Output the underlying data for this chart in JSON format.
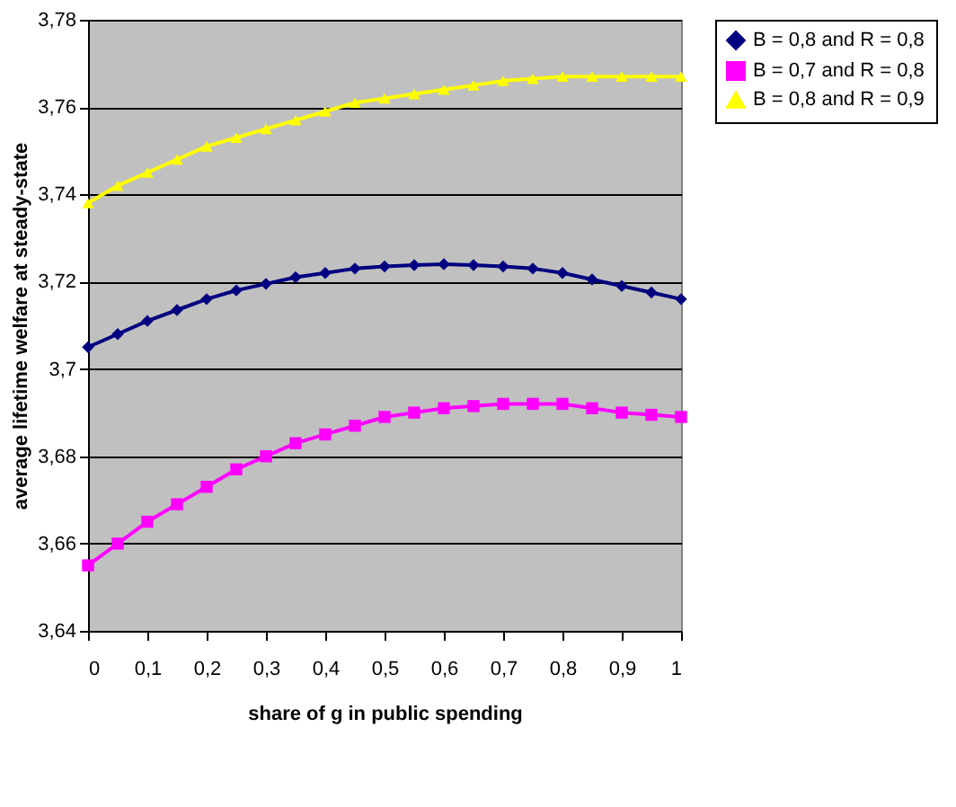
{
  "chart_data": {
    "type": "line",
    "xlabel": "share of g in public spending",
    "ylabel": "average lifetime welfare at steady-state",
    "x": [
      0,
      0.05,
      0.1,
      0.15,
      0.2,
      0.25,
      0.3,
      0.35,
      0.4,
      0.45,
      0.5,
      0.55,
      0.6,
      0.65,
      0.7,
      0.75,
      0.8,
      0.85,
      0.9,
      0.95,
      1
    ],
    "series": [
      {
        "name": "B = 0,8 and R = 0,8",
        "color": "#000080",
        "marker": "diamond",
        "values": [
          3.705,
          3.708,
          3.711,
          3.7135,
          3.716,
          3.718,
          3.7195,
          3.721,
          3.722,
          3.723,
          3.7235,
          3.7238,
          3.724,
          3.7238,
          3.7235,
          3.723,
          3.722,
          3.7205,
          3.719,
          3.7175,
          3.716
        ]
      },
      {
        "name": "B = 0,7 and R = 0,8",
        "color": "#ff00ff",
        "marker": "square",
        "values": [
          3.655,
          3.66,
          3.665,
          3.669,
          3.673,
          3.677,
          3.68,
          3.683,
          3.685,
          3.687,
          3.689,
          3.69,
          3.691,
          3.6915,
          3.692,
          3.692,
          3.692,
          3.691,
          3.69,
          3.6895,
          3.689
        ]
      },
      {
        "name": "B = 0,8 and R = 0,9",
        "color": "#ffff00",
        "marker": "triangle",
        "values": [
          3.738,
          3.742,
          3.745,
          3.748,
          3.751,
          3.753,
          3.755,
          3.757,
          3.759,
          3.761,
          3.762,
          3.763,
          3.764,
          3.765,
          3.766,
          3.7665,
          3.767,
          3.767,
          3.767,
          3.767,
          3.767
        ]
      }
    ],
    "xlim": [
      0,
      1
    ],
    "xticks": [
      0,
      {
        "value": 0.1,
        "label": "0,1"
      },
      {
        "value": 0.2,
        "label": "0,2"
      },
      {
        "value": 0.3,
        "label": "0,3"
      },
      {
        "value": 0.4,
        "label": "0,4"
      },
      {
        "value": 0.5,
        "label": "0,5"
      },
      {
        "value": 0.6,
        "label": "0,6"
      },
      {
        "value": 0.7,
        "label": "0,7"
      },
      {
        "value": 0.8,
        "label": "0,8"
      },
      {
        "value": 0.9,
        "label": "0,9"
      },
      1
    ],
    "ylim": [
      3.64,
      3.78
    ],
    "yticks": [
      {
        "value": 3.64,
        "label": "3,64"
      },
      {
        "value": 3.66,
        "label": "3,66"
      },
      {
        "value": 3.68,
        "label": "3,68"
      },
      {
        "value": 3.7,
        "label": "3,7"
      },
      {
        "value": 3.72,
        "label": "3,72"
      },
      {
        "value": 3.74,
        "label": "3,74"
      },
      {
        "value": 3.76,
        "label": "3,76"
      },
      {
        "value": 3.78,
        "label": "3,78"
      }
    ],
    "grid": "y",
    "legend": "right",
    "line_style": "solid"
  }
}
